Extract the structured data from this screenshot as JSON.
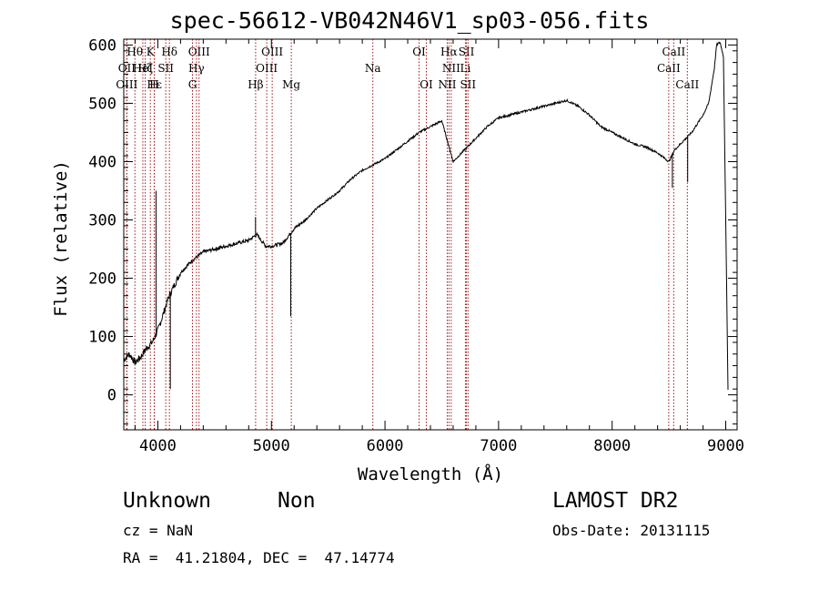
{
  "chart_data": {
    "type": "line",
    "title": "spec-56612-VB042N46V1_sp03-056.fits",
    "xlabel": "Wavelength (Å)",
    "ylabel": "Flux (relative)",
    "xlim": [
      3700,
      9100
    ],
    "ylim": [
      -60,
      610
    ],
    "xticks": [
      4000,
      5000,
      6000,
      7000,
      8000,
      9000
    ],
    "yticks": [
      0,
      100,
      200,
      300,
      400,
      500,
      600
    ],
    "series": [
      {
        "name": "spectrum",
        "x": [
          3700,
          3750,
          3800,
          3850,
          3900,
          3950,
          4000,
          4050,
          4100,
          4200,
          4300,
          4400,
          4500,
          4600,
          4700,
          4800,
          4870,
          4950,
          5000,
          5100,
          5200,
          5300,
          5400,
          5500,
          5600,
          5700,
          5800,
          5900,
          6000,
          6100,
          6200,
          6300,
          6400,
          6500,
          6600,
          6700,
          6800,
          6900,
          7000,
          7100,
          7200,
          7300,
          7400,
          7500,
          7600,
          7700,
          7800,
          7900,
          8000,
          8100,
          8200,
          8300,
          8400,
          8500,
          8550,
          8600,
          8700,
          8800,
          8850,
          8900,
          8920,
          8950,
          8980,
          9000,
          9020
        ],
        "y": [
          60,
          70,
          55,
          65,
          80,
          90,
          110,
          140,
          170,
          210,
          230,
          245,
          250,
          255,
          260,
          265,
          275,
          255,
          255,
          260,
          285,
          300,
          320,
          335,
          350,
          370,
          385,
          395,
          405,
          420,
          435,
          450,
          460,
          470,
          400,
          420,
          440,
          460,
          475,
          480,
          485,
          490,
          495,
          500,
          505,
          495,
          480,
          460,
          450,
          440,
          430,
          425,
          415,
          400,
          420,
          430,
          450,
          480,
          500,
          560,
          600,
          605,
          580,
          300,
          10
        ],
        "noise": 0.06
      }
    ],
    "spikes": [
      {
        "x": 3985,
        "y": 350
      },
      {
        "x": 4110,
        "y": 10
      },
      {
        "x": 4860,
        "y": 305
      },
      {
        "x": 5170,
        "y": 135
      },
      {
        "x": 8530,
        "y": 355
      },
      {
        "x": 8665,
        "y": 365
      }
    ],
    "lines": [
      {
        "label": "Hθ",
        "x": 3798,
        "row": 0
      },
      {
        "label": "OII",
        "x": 3727,
        "row": 1
      },
      {
        "label": "OIII",
        "x": 3727,
        "row": 2
      },
      {
        "label": "Hζ",
        "x": 3889,
        "row": 1
      },
      {
        "label": "Hε",
        "x": 3970,
        "row": 2
      },
      {
        "label": "K",
        "x": 3934,
        "row": 0
      },
      {
        "label": "HeI",
        "x": 3868,
        "row": 1
      },
      {
        "label": "H",
        "x": 3968,
        "row": 2
      },
      {
        "label": "Hδ",
        "x": 4102,
        "row": 0
      },
      {
        "label": "SII",
        "x": 4070,
        "row": 1
      },
      {
        "label": "OIII",
        "x": 4363,
        "row": 0
      },
      {
        "label": "Hγ",
        "x": 4340,
        "row": 1
      },
      {
        "label": "G",
        "x": 4305,
        "row": 2
      },
      {
        "label": "Hβ",
        "x": 4861,
        "row": 2
      },
      {
        "label": "OIII",
        "x": 5007,
        "row": 0
      },
      {
        "label": "OIII",
        "x": 4959,
        "row": 1
      },
      {
        "label": "Mg",
        "x": 5175,
        "row": 2
      },
      {
        "label": "Na",
        "x": 5893,
        "row": 1
      },
      {
        "label": "OI",
        "x": 6300,
        "row": 0
      },
      {
        "label": "OI",
        "x": 6364,
        "row": 2
      },
      {
        "label": "Hα",
        "x": 6563,
        "row": 0
      },
      {
        "label": "NII",
        "x": 6583,
        "row": 1
      },
      {
        "label": "NII",
        "x": 6548,
        "row": 2
      },
      {
        "label": "SII",
        "x": 6717,
        "row": 0
      },
      {
        "label": "Li",
        "x": 6708,
        "row": 1
      },
      {
        "label": "SII",
        "x": 6731,
        "row": 2
      },
      {
        "label": "CaII",
        "x": 8542,
        "row": 0
      },
      {
        "label": "CaII",
        "x": 8498,
        "row": 1
      },
      {
        "label": "CaII",
        "x": 8662,
        "row": 2
      }
    ],
    "colors": {
      "line": "#000000",
      "marker": "#a01818"
    }
  },
  "info": {
    "class": "Unknown",
    "subclass": "Non",
    "survey": "LAMOST DR2",
    "cz": "cz = NaN",
    "obs_date": "Obs-Date: 20131115",
    "coords": "RA =  41.21804, DEC =  47.14774"
  }
}
